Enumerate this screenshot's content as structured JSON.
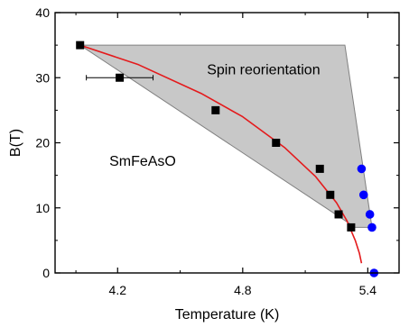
{
  "chart_data": {
    "type": "scatter",
    "title": "",
    "xlabel": "Temperature (K)",
    "ylabel": "B(T)",
    "xlim": [
      3.9,
      5.55
    ],
    "ylim": [
      0,
      40
    ],
    "xticks": [
      4.2,
      4.8,
      5.4
    ],
    "yticks": [
      0,
      10,
      20,
      30,
      40
    ],
    "x_tick_labels": [
      "4.2",
      "4.8",
      "5.4"
    ],
    "y_tick_labels": [
      "0",
      "10",
      "20",
      "30",
      "40"
    ],
    "grid": false,
    "colors": {
      "squares": "#000000",
      "circles": "#0000ff",
      "fit": "#e41a1c",
      "region_fill": "#c8c8c8",
      "region_stroke": "#808080"
    },
    "annotations": [
      {
        "text": "Spin reorientation",
        "x": 4.9,
        "y": 30.5
      },
      {
        "text": "SmFeAsO",
        "x": 4.32,
        "y": 16.5
      }
    ],
    "series": [
      {
        "marker": "square",
        "points": [
          {
            "x": 4.02,
            "y": 35
          },
          {
            "x": 4.21,
            "y": 30,
            "xerr": 0.16
          },
          {
            "x": 4.67,
            "y": 25
          },
          {
            "x": 4.96,
            "y": 20
          },
          {
            "x": 5.17,
            "y": 16
          },
          {
            "x": 5.22,
            "y": 12
          },
          {
            "x": 5.26,
            "y": 9
          },
          {
            "x": 5.32,
            "y": 7
          }
        ]
      },
      {
        "marker": "circle",
        "points": [
          {
            "x": 5.37,
            "y": 16
          },
          {
            "x": 5.38,
            "y": 12
          },
          {
            "x": 5.41,
            "y": 9
          },
          {
            "x": 5.42,
            "y": 7
          },
          {
            "x": 5.43,
            "y": 0
          }
        ]
      },
      {
        "marker": "line",
        "points": [
          {
            "x": 4.02,
            "y": 35
          },
          {
            "x": 4.3,
            "y": 32.0
          },
          {
            "x": 4.6,
            "y": 27.6
          },
          {
            "x": 4.8,
            "y": 24.0
          },
          {
            "x": 5.0,
            "y": 19.3
          },
          {
            "x": 5.15,
            "y": 14.8
          },
          {
            "x": 5.25,
            "y": 10.8
          },
          {
            "x": 5.3,
            "y": 8.0
          },
          {
            "x": 5.34,
            "y": 5.0
          },
          {
            "x": 5.36,
            "y": 3.0
          },
          {
            "x": 5.37,
            "y": 1.5
          }
        ]
      },
      {
        "marker": "shaded-region",
        "points": [
          {
            "x": 4.02,
            "y": 35
          },
          {
            "x": 5.29,
            "y": 35
          },
          {
            "x": 5.42,
            "y": 7
          },
          {
            "x": 5.34,
            "y": 7
          }
        ]
      }
    ]
  }
}
